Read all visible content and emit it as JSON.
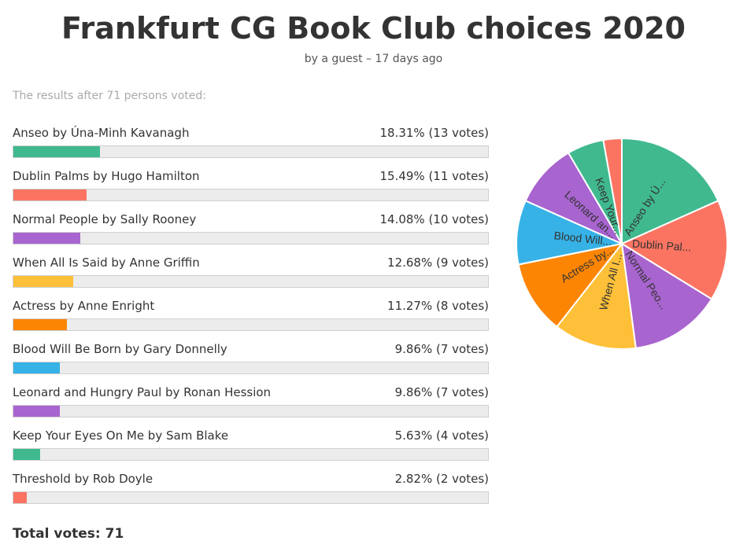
{
  "header": {
    "title": "Frankfurt CG Book Club choices 2020",
    "subtitle": "by a guest – 17 days ago"
  },
  "results_note": "The results after 71 persons voted:",
  "total_label": "Total votes:",
  "total_votes": "71",
  "chart_data": {
    "type": "bar",
    "categories": [
      "Anseo by Úna-Minh Kavanagh",
      "Dublin Palms by Hugo Hamilton",
      "Normal People by Sally Rooney",
      "When All Is Said by Anne Griffin",
      "Actress by Anne Enright",
      "Blood Will Be Born by Gary Donnelly",
      "Leonard and Hungry Paul by Ronan Hession",
      "Keep Your Eyes On Me by Sam Blake",
      "Threshold by Rob Doyle"
    ],
    "values": [
      18.31,
      15.49,
      14.08,
      12.68,
      11.27,
      9.86,
      9.86,
      5.63,
      2.82
    ],
    "votes": [
      13,
      11,
      10,
      9,
      8,
      7,
      7,
      4,
      2
    ],
    "value_labels": [
      "18.31% (13 votes)",
      "15.49% (11 votes)",
      "14.08% (10 votes)",
      "12.68% (9 votes)",
      "11.27% (8 votes)",
      "9.86% (7 votes)",
      "9.86% (7 votes)",
      "5.63% (4 votes)",
      "2.82% (2 votes)"
    ],
    "colors": [
      "#40b98f",
      "#fb7462",
      "#a864cf",
      "#fec038",
      "#fc8504",
      "#36b2e6",
      "#a864cf",
      "#40b98f",
      "#fb7462"
    ],
    "pie_labels": [
      "Anseo by Ú...",
      "Dublin Pal...",
      "Normal Peo...",
      "When All I...",
      "Actress by...",
      "Blood Will...",
      "Leonard an...",
      "Keep Your...",
      ""
    ]
  }
}
